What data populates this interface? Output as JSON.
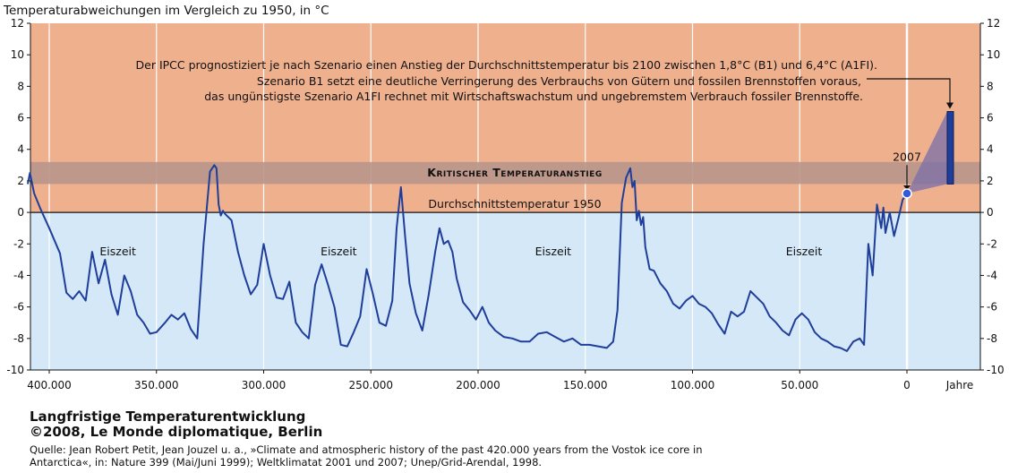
{
  "chart_data": {
    "type": "line",
    "title": "Langfristige Temperaturentwicklung",
    "ylabel": "Temperaturabweichungen im Vergleich zu 1950, in °C",
    "xlabel": "Jahre",
    "xlim": [
      410000,
      -30000
    ],
    "ylim": [
      -10,
      12
    ],
    "yticks": [
      12,
      10,
      8,
      6,
      4,
      2,
      0,
      -2,
      -4,
      -6,
      -8,
      -10
    ],
    "xticks": [
      {
        "value": 400000,
        "label": "400.000"
      },
      {
        "value": 350000,
        "label": "350.000"
      },
      {
        "value": 300000,
        "label": "300.000"
      },
      {
        "value": 250000,
        "label": "250.000"
      },
      {
        "value": 200000,
        "label": "200.000"
      },
      {
        "value": 150000,
        "label": "150.000"
      },
      {
        "value": 100000,
        "label": "100.000"
      },
      {
        "value": 50000,
        "label": "50.000"
      },
      {
        "value": 0,
        "label": "0"
      }
    ],
    "series": [
      {
        "color": "#1f3e9a",
        "x": [
          410000,
          409000,
          407000,
          404000,
          400000,
          395000,
          392000,
          389000,
          386000,
          383000,
          380000,
          377000,
          374000,
          371000,
          368000,
          365000,
          362000,
          359000,
          356000,
          353000,
          350000,
          346000,
          343000,
          340000,
          337000,
          334000,
          331000,
          328000,
          325000,
          323000,
          322000,
          321000,
          320000,
          319000,
          318000,
          315000,
          312000,
          309000,
          306000,
          303000,
          300000,
          297000,
          294000,
          291000,
          288000,
          285000,
          282000,
          279000,
          276000,
          273000,
          270000,
          267000,
          264000,
          261000,
          258000,
          255000,
          252000,
          249000,
          246000,
          243000,
          240000,
          238000,
          236000,
          234000,
          232000,
          229000,
          226000,
          223000,
          220000,
          218000,
          216000,
          214000,
          212000,
          210000,
          207000,
          204000,
          201000,
          198000,
          195000,
          192000,
          188000,
          184000,
          180000,
          176000,
          172000,
          168000,
          164000,
          160000,
          156000,
          152000,
          148000,
          144000,
          140000,
          137000,
          135000,
          133000,
          131000,
          129000,
          128000,
          127000,
          126000,
          125000,
          124000,
          123000,
          122000,
          120000,
          118000,
          115000,
          112000,
          109000,
          106000,
          103000,
          100000,
          97000,
          94000,
          91000,
          88000,
          85000,
          82000,
          79000,
          76000,
          73000,
          70000,
          67000,
          64000,
          61000,
          58000,
          55000,
          52000,
          49000,
          46000,
          43000,
          40000,
          37000,
          34000,
          31000,
          28000,
          25000,
          22000,
          20000,
          18000,
          16000,
          14000,
          12000,
          11000,
          10000,
          8000,
          6000,
          4000,
          2000,
          0
        ],
        "values": [
          1.8,
          2.5,
          1.2,
          0.2,
          -1.0,
          -2.6,
          -5.1,
          -5.5,
          -5.0,
          -5.6,
          -2.5,
          -4.5,
          -3.0,
          -5.2,
          -6.5,
          -4.0,
          -5.0,
          -6.5,
          -7.0,
          -7.7,
          -7.6,
          -7.0,
          -6.5,
          -6.8,
          -6.4,
          -7.4,
          -8.0,
          -2.0,
          2.6,
          3.0,
          2.8,
          0.5,
          -0.2,
          0.1,
          -0.1,
          -0.5,
          -2.5,
          -4.0,
          -5.2,
          -4.6,
          -2.0,
          -4.0,
          -5.4,
          -5.5,
          -4.4,
          -7.0,
          -7.6,
          -8.0,
          -4.6,
          -3.3,
          -4.6,
          -6.0,
          -8.4,
          -8.5,
          -7.6,
          -6.6,
          -3.6,
          -5.2,
          -7.0,
          -7.2,
          -5.6,
          -1.0,
          1.6,
          -1.6,
          -4.5,
          -6.4,
          -7.5,
          -5.2,
          -2.5,
          -1.0,
          -2.0,
          -1.8,
          -2.5,
          -4.2,
          -5.7,
          -6.2,
          -6.8,
          -6.0,
          -7.0,
          -7.5,
          -7.9,
          -8.0,
          -8.2,
          -8.2,
          -7.7,
          -7.6,
          -7.9,
          -8.2,
          -8.0,
          -8.4,
          -8.4,
          -8.5,
          -8.6,
          -8.2,
          -6.2,
          0.6,
          2.2,
          2.8,
          1.6,
          2.0,
          -0.5,
          0.1,
          -0.8,
          -0.3,
          -2.2,
          -3.6,
          -3.7,
          -4.5,
          -5.0,
          -5.8,
          -6.1,
          -5.6,
          -5.3,
          -5.8,
          -6.0,
          -6.4,
          -7.1,
          -7.7,
          -6.3,
          -6.6,
          -6.3,
          -5.0,
          -5.4,
          -5.8,
          -6.6,
          -7.0,
          -7.5,
          -7.8,
          -6.8,
          -6.4,
          -6.8,
          -7.6,
          -8.0,
          -8.2,
          -8.5,
          -8.6,
          -8.8,
          -8.2,
          -8.0,
          -8.4,
          -2.0,
          -4.0,
          0.5,
          -1.0,
          0.3,
          -1.3,
          0.0,
          -1.5,
          -0.4,
          0.8,
          1.2
        ]
      }
    ],
    "threshold_band": {
      "from": 1.8,
      "to": 3.2,
      "label": "kritischer Temperaturanstieg"
    },
    "baseline": {
      "value": 0,
      "label": "Durchschnittstemperatur 1950"
    },
    "eiszeit_labels": [
      {
        "x": 368000,
        "y": -2.5,
        "text": "Eiszeit"
      },
      {
        "x": 265000,
        "y": -2.5,
        "text": "Eiszeit"
      },
      {
        "x": 165000,
        "y": -2.5,
        "text": "Eiszeit"
      },
      {
        "x": 48000,
        "y": -2.5,
        "text": "Eiszeit"
      }
    ],
    "marker_2007": {
      "x": 0,
      "y": 1.2,
      "label": "2007"
    },
    "projection": {
      "low": 1.8,
      "high": 6.4
    },
    "annotation_lines": [
      "Der IPCC prognostiziert je nach Szenario einen Anstieg der Durchschnittstemperatur bis 2100 zwischen 1,8°C (B1) und  6,4°C (A1FI).",
      "Szenario B1 setzt eine deutliche Verringerung des Verbrauchs von Gütern und fossilen Brennstoffen voraus,",
      "das ungünstigste Szenario A1FI rechnet mit Wirtschaftswachstum und ungebremstem Verbrauch fossiler Brennstoffe."
    ],
    "colors": {
      "warm": "#efb08e",
      "cold": "#d4e8f7",
      "band": "#b8968a",
      "line": "#1f3e9a",
      "grid": "#ffffff"
    }
  },
  "footer": {
    "title1": "Langfristige Temperaturentwicklung",
    "title2": "©2008, Le Monde diplomatique, Berlin",
    "source1": "Quelle: Jean Robert Petit, Jean Jouzel u. a., »Climate and atmospheric history of the past 420.000 years from the Vostok ice core in",
    "source2": "Antarctica«, in: Nature 399 (Mai/Juni 1999); Weltklimatat 2001 und 2007; Unep/Grid-Arendal, 1998."
  }
}
